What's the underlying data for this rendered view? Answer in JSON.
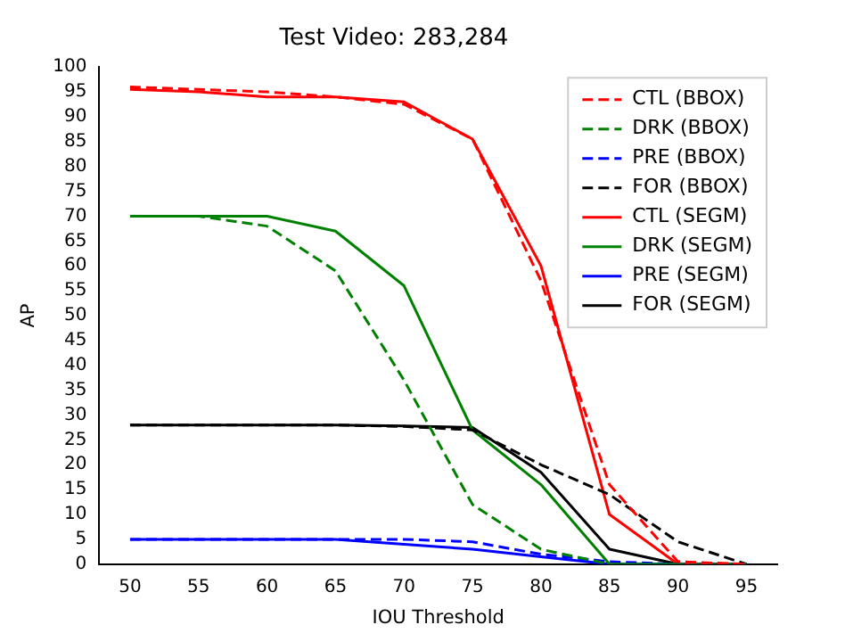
{
  "chart_data": {
    "type": "line",
    "title": "Test Video: 283,284",
    "xlabel": "IOU Threshold",
    "ylabel": "AP",
    "x": [
      50,
      55,
      60,
      65,
      70,
      75,
      80,
      85,
      90,
      95
    ],
    "xlim": [
      47.75,
      97.25
    ],
    "xticks": [
      50,
      55,
      60,
      65,
      70,
      75,
      80,
      85,
      90,
      95
    ],
    "ylim": [
      0,
      100
    ],
    "yticks": [
      0,
      5,
      10,
      15,
      20,
      25,
      30,
      35,
      40,
      45,
      50,
      55,
      60,
      65,
      70,
      75,
      80,
      85,
      90,
      95,
      100
    ],
    "grid": false,
    "legend": "top right",
    "marker": "none",
    "series": [
      {
        "name": "CTL (BBOX)",
        "color": "#ff0000",
        "line_style": "dashed",
        "values": [
          96,
          95.5,
          95,
          94,
          92.5,
          85.5,
          57,
          16,
          0.5,
          0
        ]
      },
      {
        "name": "DRK (BBOX)",
        "color": "#008000",
        "line_style": "dashed",
        "values": [
          70,
          70,
          68,
          59,
          37,
          12,
          3,
          0,
          0,
          0
        ]
      },
      {
        "name": "PRE (BBOX)",
        "color": "#0000ff",
        "line_style": "dashed",
        "values": [
          5,
          5,
          5,
          5,
          5,
          4.5,
          2,
          0.5,
          0,
          0
        ]
      },
      {
        "name": "FOR (BBOX)",
        "color": "#000000",
        "line_style": "dashed",
        "values": [
          28,
          28,
          28,
          28,
          27.7,
          27,
          20,
          14,
          4.5,
          0
        ]
      },
      {
        "name": "CTL (SEGM)",
        "color": "#ff0000",
        "line_style": "solid",
        "values": [
          95.5,
          95,
          94,
          94,
          93,
          85.5,
          60,
          10,
          0,
          0
        ]
      },
      {
        "name": "DRK (SEGM)",
        "color": "#008000",
        "line_style": "solid",
        "values": [
          70,
          70,
          70,
          67,
          56,
          27,
          16,
          0,
          0,
          0
        ]
      },
      {
        "name": "PRE (SEGM)",
        "color": "#0000ff",
        "line_style": "solid",
        "values": [
          5,
          5,
          5,
          5,
          4,
          3,
          1.5,
          0,
          0,
          0
        ]
      },
      {
        "name": "FOR (SEGM)",
        "color": "#000000",
        "line_style": "solid",
        "values": [
          28,
          28,
          28,
          28,
          27.8,
          27.5,
          18.5,
          3,
          0,
          0
        ]
      }
    ]
  }
}
